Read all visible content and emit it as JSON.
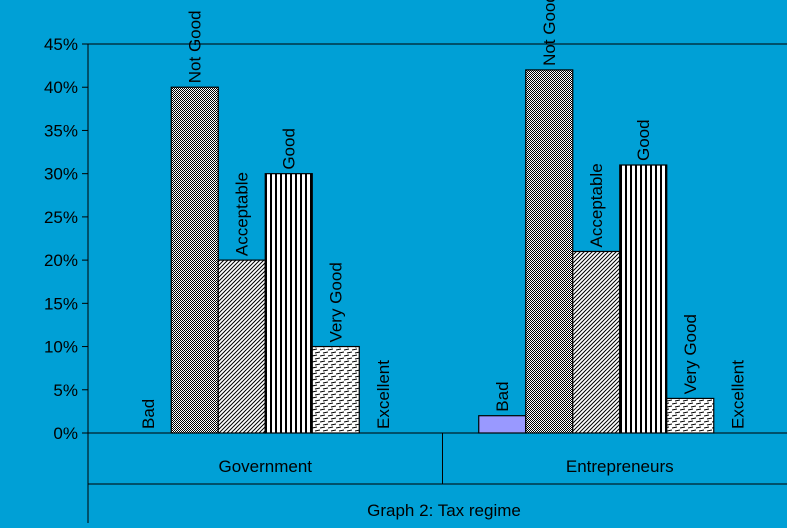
{
  "chart_data": {
    "type": "bar",
    "title": "Graph 2: Tax regime",
    "xlabel": "",
    "ylabel": "",
    "ylim": [
      0,
      45
    ],
    "yticks": [
      0,
      5,
      10,
      15,
      20,
      25,
      30,
      35,
      40,
      45
    ],
    "ytick_suffix": "%",
    "grid": false,
    "legend": "none",
    "categories": [
      "Government",
      "Entrepreneurs"
    ],
    "series": [
      {
        "name": "Bad",
        "values": [
          0,
          2
        ],
        "pattern": "solid",
        "color": "#9999ff"
      },
      {
        "name": "Not Good",
        "values": [
          40,
          42
        ],
        "pattern": "checker",
        "color": "#ffffff"
      },
      {
        "name": "Acceptable",
        "values": [
          20,
          21
        ],
        "pattern": "diagonal",
        "color": "#ffffff"
      },
      {
        "name": "Good",
        "values": [
          30,
          31
        ],
        "pattern": "vertical",
        "color": "#ffffff"
      },
      {
        "name": "Very Good",
        "values": [
          10,
          4
        ],
        "pattern": "dashed",
        "color": "#ffffff"
      },
      {
        "name": "Excellent",
        "values": [
          0,
          0
        ],
        "pattern": "solid",
        "color": "#ffffff"
      }
    ],
    "colors": {
      "background": "#00a0d6",
      "axis": "#000000"
    }
  }
}
